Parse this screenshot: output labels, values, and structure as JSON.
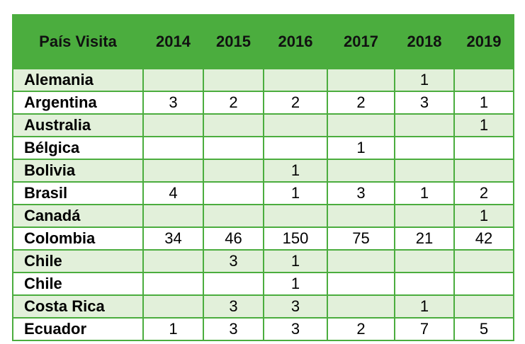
{
  "table": {
    "headers": [
      "País Visita",
      "2014",
      "2015",
      "2016",
      "2017",
      "2018",
      "2019"
    ],
    "rows": [
      [
        "Alemania",
        "",
        "",
        "",
        "",
        "1",
        ""
      ],
      [
        "Argentina",
        "3",
        "2",
        "2",
        "2",
        "3",
        "1"
      ],
      [
        "Australia",
        "",
        "",
        "",
        "",
        "",
        "1"
      ],
      [
        "Bélgica",
        "",
        "",
        "",
        "1",
        "",
        ""
      ],
      [
        "Bolivia",
        "",
        "",
        "1",
        "",
        "",
        ""
      ],
      [
        "Brasil",
        "4",
        "",
        "1",
        "3",
        "1",
        "2"
      ],
      [
        "Canadá",
        "",
        "",
        "",
        "",
        "",
        "1"
      ],
      [
        "Colombia",
        "34",
        "46",
        "150",
        "75",
        "21",
        "42"
      ],
      [
        "Chile",
        "",
        "3",
        "1",
        "",
        "",
        ""
      ],
      [
        "Chile",
        "",
        "",
        "1",
        "",
        "",
        ""
      ],
      [
        "Costa Rica",
        "",
        "3",
        "3",
        "",
        "1",
        ""
      ],
      [
        "Ecuador",
        "1",
        "3",
        "3",
        "2",
        "7",
        "5"
      ]
    ]
  },
  "colors": {
    "header_green": "#4bad3e",
    "row_tint": "#e2f0da"
  }
}
